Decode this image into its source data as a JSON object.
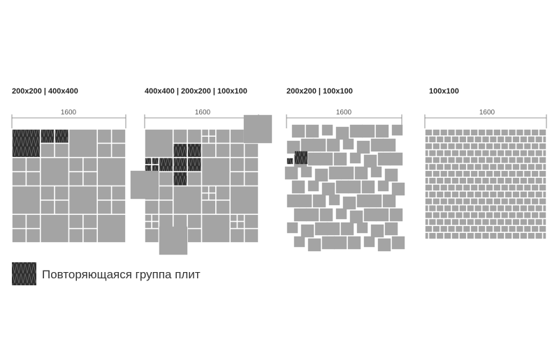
{
  "panels": [
    {
      "title": "200x200 | 400x400",
      "dimension": "1600"
    },
    {
      "title": "400x400 | 200x200 | 100x100",
      "dimension": "1600"
    },
    {
      "title": "200x200 | 100x100",
      "dimension": "1600"
    },
    {
      "title": "100x100",
      "dimension": "1600"
    }
  ],
  "legend": {
    "label": "Повторяющаяся группа плит"
  }
}
